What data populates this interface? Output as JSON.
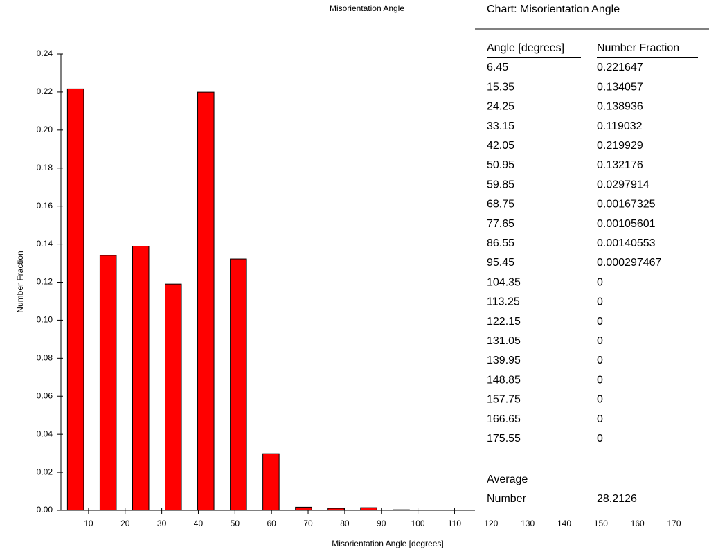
{
  "chart_data": {
    "type": "bar",
    "title": "Misorientation Angle",
    "x_label": "Misorientation Angle [degrees]",
    "y_label": "Number Fraction",
    "x": [
      6.45,
      15.35,
      24.25,
      33.15,
      42.05,
      50.95,
      59.85,
      68.75,
      77.65,
      86.55,
      95.45,
      104.35,
      113.25,
      122.15,
      131.05,
      139.95,
      148.85,
      157.75,
      166.65,
      175.55
    ],
    "values": [
      0.221647,
      0.134057,
      0.138936,
      0.119032,
      0.219929,
      0.132176,
      0.0297914,
      0.00167325,
      0.00105601,
      0.00140553,
      0.000297467,
      0,
      0,
      0,
      0,
      0,
      0,
      0,
      0,
      0
    ],
    "color": "#ff0000",
    "xlim": [
      2.45,
      175
    ],
    "xticks": [
      10,
      20,
      30,
      40,
      50,
      60,
      70,
      80,
      90,
      100,
      110,
      120,
      130,
      140,
      150,
      160,
      170
    ],
    "ylim": [
      0,
      0.24
    ],
    "yticks": [
      {
        "value": 0,
        "label": "0.00"
      },
      {
        "value": 0.02,
        "label": "0.02"
      },
      {
        "value": 0.04,
        "label": "0.04"
      },
      {
        "value": 0.06,
        "label": "0.06"
      },
      {
        "value": 0.08,
        "label": "0.08"
      },
      {
        "value": 0.1,
        "label": "0.10"
      },
      {
        "value": 0.12,
        "label": "0.12"
      },
      {
        "value": 0.14,
        "label": "0.14"
      },
      {
        "value": 0.16,
        "label": "0.16"
      },
      {
        "value": 0.18,
        "label": "0.18"
      },
      {
        "value": 0.2,
        "label": "0.20"
      },
      {
        "value": 0.22,
        "label": "0.22"
      },
      {
        "value": 0.24,
        "label": "0.24"
      }
    ],
    "grid": false
  },
  "panel": {
    "title": "Chart:  Misorientation Angle",
    "columns": [
      "Angle [degrees]",
      "Number Fraction"
    ],
    "average_label": "Average",
    "average_row_label": "Number",
    "average_value": 28.2126
  }
}
